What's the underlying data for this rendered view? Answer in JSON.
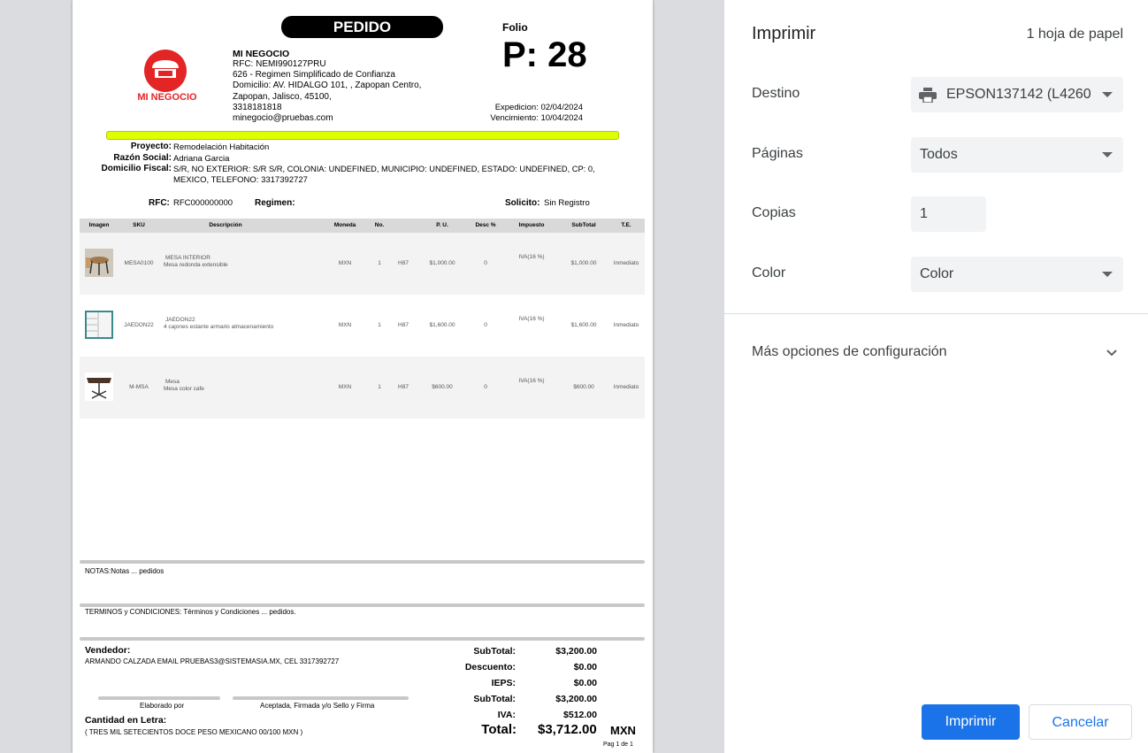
{
  "document": {
    "title": "PEDIDO",
    "company": {
      "name": "MI NEGOCIO",
      "logo_text": "MI NEGOCIO",
      "rfc": "RFC: NEMI990127PRU",
      "regimen": "626 - Regimen Simplificado de Confianza",
      "address1": "Domicilio: AV. HIDALGO 101, , Zapopan Centro,",
      "address2": "Zapopan, Jalisco, 45100,",
      "phone": "3318181818",
      "email": "minegocio@pruebas.com"
    },
    "folio_label": "Folio",
    "folio": "P: 28",
    "expedicion": "Expedicion: 02/04/2024",
    "vencimiento": "Vencimiento: 10/04/2024",
    "client": {
      "proyecto_label": "Proyecto:",
      "proyecto": "Remodelación Habitación",
      "razon_label": "Razón Social:",
      "razon": "Adriana Garcia",
      "domicilio_label": "Domicilio Fiscal:",
      "domicilio1": "S/R, NO EXTERIOR: S/R S/R, COLONIA: UNDEFINED, MUNICIPIO: UNDEFINED, ESTADO: UNDEFINED, CP: 0,",
      "domicilio2": "MEXICO, TELEFONO: 3317392727",
      "rfc_label": "RFC:",
      "rfc": "RFC000000000",
      "regimen_label": "Regimen:",
      "solicito_label": "Solicito:",
      "solicito": "Sin Registro"
    },
    "table": {
      "headers": [
        "Imagen",
        "SKU",
        "Descripción",
        "Moneda",
        "No.",
        "P. U.",
        "Desc %",
        "Impuesto",
        "SubTotal",
        "T.E."
      ],
      "rows": [
        {
          "image": "table-chairs",
          "sku": "MESA0100",
          "name": "MESA INTERIOR",
          "desc": "Mesa redonda extensible",
          "moneda": "MXN",
          "no": "1",
          "unit": "H87",
          "pu": "$1,000.00",
          "descuento": "0",
          "impuesto": "IVA(16 %)",
          "subtotal": "$1,000.00",
          "te": "Inmediato"
        },
        {
          "image": "cabinet",
          "sku": "JAEDON22",
          "name": "JAEDON22",
          "desc": "4 cajones estante armario almacenamiento",
          "moneda": "MXN",
          "no": "1",
          "unit": "H87",
          "pu": "$1,600.00",
          "descuento": "0",
          "impuesto": "IVA(16 %)",
          "subtotal": "$1,600.00",
          "te": "Inmediato"
        },
        {
          "image": "brown-table",
          "sku": "M-MSA",
          "name": "Mesa",
          "desc": "Mesa color cafe",
          "moneda": "MXN",
          "no": "1",
          "unit": "H87",
          "pu": "$600.00",
          "descuento": "0",
          "impuesto": "IVA(16 %)",
          "subtotal": "$600.00",
          "te": "Inmediato"
        }
      ]
    },
    "notas": "NOTAS:Notas ... pedidos",
    "terminos": "TERMINOS y CONDICIONES: Términos y Condiciones ... pedidos.",
    "vendedor_label": "Vendedor:",
    "vendedor": "ARMANDO CALZADA EMAIL PRUEBAS3@SISTEMASIA.MX, CEL 3317392727",
    "elaborado": "Elaborado por",
    "aceptada": "Aceptada, Firmada y/o Sello y Firma",
    "letra_label": "Cantidad en Letra:",
    "letra": "( TRES MIL SETECIENTOS DOCE PESO MEXICANO 00/100 MXN )",
    "totals": [
      {
        "label": "SubTotal:",
        "value": "$3,200.00"
      },
      {
        "label": "Descuento:",
        "value": "$0.00"
      },
      {
        "label": "IEPS:",
        "value": "$0.00"
      },
      {
        "label": "SubTotal:",
        "value": "$3,200.00"
      },
      {
        "label": "IVA:",
        "value": "$512.00"
      }
    ],
    "total_label": "Total:",
    "total": "$3,712.00",
    "currency": "MXN",
    "page": "Pag 1 de 1",
    "highlight_color": "#deff00",
    "brand_color": "#e32526"
  },
  "panel": {
    "title": "Imprimir",
    "sheets": "1 hoja de papel",
    "destino_label": "Destino",
    "destino": "EPSON137142 (L4260",
    "paginas_label": "Páginas",
    "paginas": "Todos",
    "copias_label": "Copias",
    "copias": "1",
    "color_label": "Color",
    "color": "Color",
    "more": "Más opciones de configuración",
    "print": "Imprimir",
    "cancel": "Cancelar",
    "accent": "#1a73e8"
  }
}
